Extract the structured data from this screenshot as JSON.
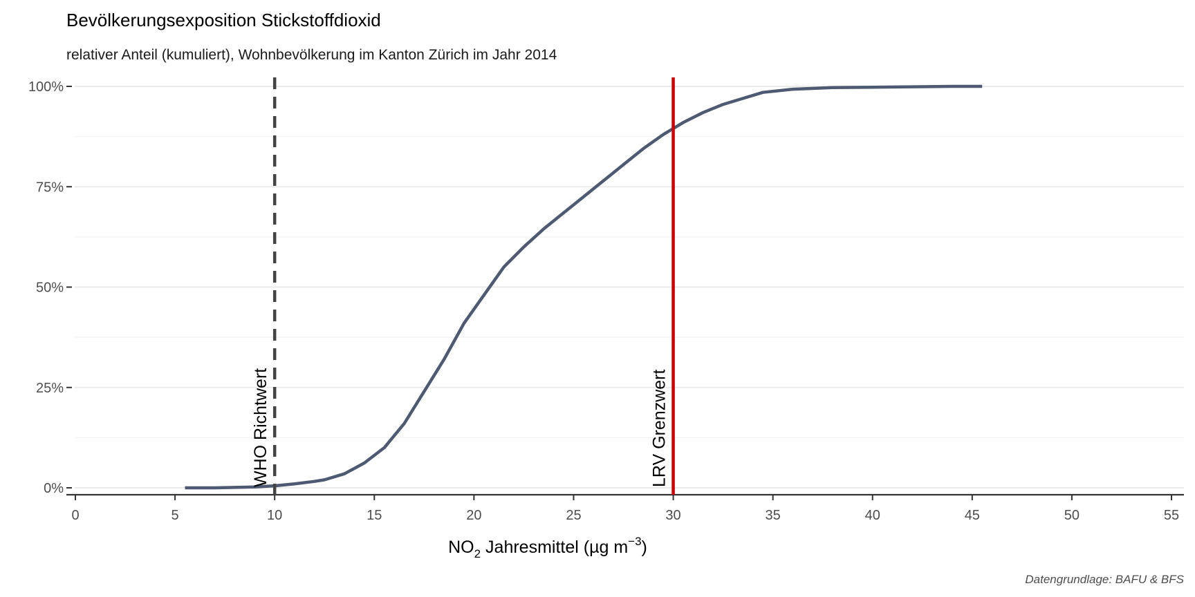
{
  "chart_data": {
    "type": "line",
    "title": "Bevölkerungsexposition Stickstoffdioxid",
    "subtitle": "relativer Anteil (kumuliert), Wohnbevölkerung im Kanton Zürich im Jahr 2014",
    "xlabel": {
      "base": "NO",
      "sub": "2",
      "main": " Jahresmittel (µg m",
      "sup": "−3",
      "close": ")"
    },
    "ylabel": "",
    "caption": "Datengrundlage: BAFU & BFS",
    "xlim": [
      0,
      55
    ],
    "ylim": [
      0,
      1
    ],
    "x_ticks": [
      0,
      5,
      10,
      15,
      20,
      25,
      30,
      35,
      40,
      45,
      50,
      55
    ],
    "y_ticks": [
      0,
      0.25,
      0.5,
      0.75,
      1.0
    ],
    "y_tick_labels": [
      "0%",
      "25%",
      "50%",
      "75%",
      "100%"
    ],
    "grid": true,
    "series": [
      {
        "color": "#4e5a72",
        "x": [
          5.5,
          7,
          8,
          9,
          10,
          11,
          12,
          12.5,
          13.5,
          14.5,
          15.5,
          16.5,
          17.5,
          18.5,
          19.5,
          20.5,
          21.5,
          22.5,
          23.5,
          24.5,
          25.5,
          26.5,
          27.5,
          28.5,
          29.5,
          30.5,
          31.5,
          32.5,
          33.5,
          34.5,
          36,
          38,
          40,
          42,
          44,
          45.5
        ],
        "y": [
          0.0,
          0.0,
          0.001,
          0.002,
          0.005,
          0.01,
          0.016,
          0.02,
          0.035,
          0.062,
          0.1,
          0.16,
          0.24,
          0.32,
          0.41,
          0.48,
          0.55,
          0.6,
          0.645,
          0.685,
          0.725,
          0.765,
          0.805,
          0.845,
          0.88,
          0.91,
          0.935,
          0.955,
          0.97,
          0.985,
          0.993,
          0.997,
          0.998,
          0.999,
          1.0,
          1.0
        ]
      }
    ],
    "reference_lines": [
      {
        "x": 10,
        "label": "WHO Richtwert",
        "style": "dashed",
        "color": "#444444"
      },
      {
        "x": 30,
        "label": "LRV Grenzwert",
        "style": "solid",
        "color": "#cc0000"
      }
    ]
  }
}
